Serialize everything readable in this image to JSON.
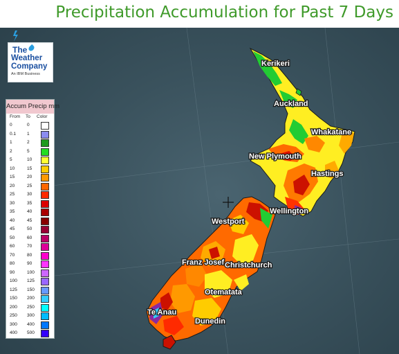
{
  "title": "Precipitation Accumulation for Past 7 Days",
  "logo": {
    "line1": "The",
    "line2": "Weather",
    "line3": "Company",
    "tagline": "An IBM Business",
    "drop_color": "#2a9fe0"
  },
  "legend": {
    "title": "Accum Precip mm",
    "headers": {
      "from": "From",
      "to": "To",
      "color": "Color"
    },
    "rows": [
      {
        "from": "0",
        "to": "0",
        "color": "#ffffff"
      },
      {
        "from": "0.1",
        "to": "1",
        "color": "#8c8cf0"
      },
      {
        "from": "1",
        "to": "2",
        "color": "#1f9a1f"
      },
      {
        "from": "2",
        "to": "5",
        "color": "#22dd22"
      },
      {
        "from": "5",
        "to": "10",
        "color": "#ffff33"
      },
      {
        "from": "10",
        "to": "15",
        "color": "#ffcc00"
      },
      {
        "from": "15",
        "to": "20",
        "color": "#ff9900"
      },
      {
        "from": "20",
        "to": "25",
        "color": "#ff6600"
      },
      {
        "from": "25",
        "to": "30",
        "color": "#ff2a00"
      },
      {
        "from": "30",
        "to": "35",
        "color": "#dd0000"
      },
      {
        "from": "35",
        "to": "40",
        "color": "#aa0000"
      },
      {
        "from": "40",
        "to": "45",
        "color": "#880000"
      },
      {
        "from": "45",
        "to": "50",
        "color": "#990033"
      },
      {
        "from": "50",
        "to": "60",
        "color": "#bb0066"
      },
      {
        "from": "60",
        "to": "70",
        "color": "#dd0099"
      },
      {
        "from": "70",
        "to": "80",
        "color": "#ff00cc"
      },
      {
        "from": "80",
        "to": "90",
        "color": "#ff33ff"
      },
      {
        "from": "90",
        "to": "100",
        "color": "#cc66ff"
      },
      {
        "from": "100",
        "to": "125",
        "color": "#9966ff"
      },
      {
        "from": "125",
        "to": "150",
        "color": "#6699ff"
      },
      {
        "from": "150",
        "to": "200",
        "color": "#33ccff"
      },
      {
        "from": "200",
        "to": "250",
        "color": "#00ffff"
      },
      {
        "from": "250",
        "to": "300",
        "color": "#00bbff"
      },
      {
        "from": "300",
        "to": "400",
        "color": "#0077ff"
      },
      {
        "from": "400",
        "to": "500",
        "color": "#3300ff"
      }
    ]
  },
  "cities": {
    "kerikeri": "Kerikeri",
    "auckland": "Auckland",
    "whakatane": "Whakatane",
    "new_plymouth": "New Plymouth",
    "hastings": "Hastings",
    "wellington": "Wellington",
    "westport": "Westport",
    "franz_josef": "Franz Josef",
    "christchurch": "Christchurch",
    "otematata": "Otematata",
    "te_anau": "Te Anau",
    "dunedin": "Dunedin"
  },
  "map_colors": {
    "ocean": "#3a525d",
    "heavy_rain": "#cc1100",
    "moderate_rain": "#ff6a00",
    "light_rain": "#ffcc00",
    "very_light_rain": "#ffff33",
    "dry": "#22cc33"
  }
}
